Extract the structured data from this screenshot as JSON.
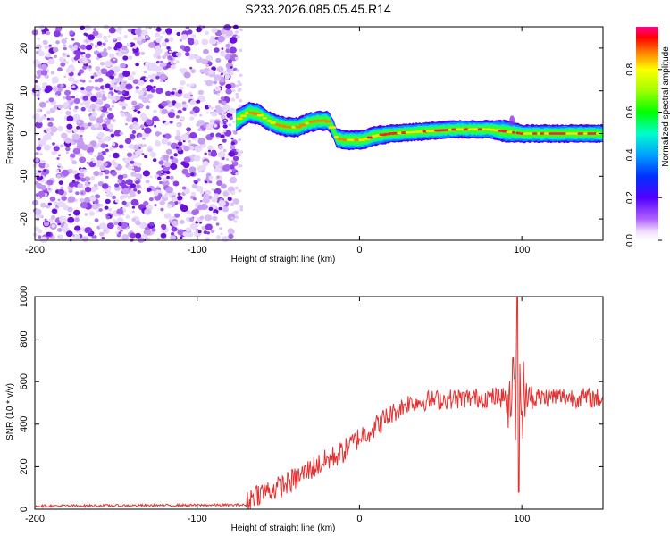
{
  "title": "S233.2026.085.05.45.R14",
  "colors": {
    "snr_line": "#e53030",
    "scatter": "#8a2be2",
    "background": "#ffffff"
  },
  "chart_data": [
    {
      "type": "heatmap",
      "name": "spectrogram",
      "xlabel": "Height of straight line (km)",
      "ylabel": "Frequency (Hz)",
      "xlim": [
        -200,
        150
      ],
      "ylim": [
        -25,
        25
      ],
      "xticks": [
        "-200",
        "-100",
        "0",
        "100"
      ],
      "yticks": [
        "20",
        "10",
        "0",
        "-10",
        "-20"
      ],
      "noise_region_x": [
        -200,
        -76
      ],
      "ridge": {
        "x": [
          -76,
          -72,
          -68,
          -62,
          -56,
          -50,
          -44,
          -38,
          -32,
          -26,
          -20,
          -18,
          -14,
          -10,
          -6,
          -2,
          2,
          6,
          10,
          20,
          40,
          60,
          80,
          90,
          100,
          120,
          150
        ],
        "freq": [
          3,
          4,
          5,
          4.5,
          3,
          2,
          1.5,
          1.5,
          2.5,
          3,
          3,
          2.5,
          -1,
          -1.5,
          -1.5,
          -1.5,
          -1.5,
          -1,
          -0.5,
          0,
          0.5,
          1,
          1,
          0.5,
          0,
          0,
          0
        ],
        "width": [
          1.4,
          1.3,
          1.3,
          1.3,
          1.2,
          1.2,
          1.2,
          1.2,
          1.2,
          1.2,
          1.2,
          1.2,
          1.2,
          1.2,
          1.2,
          1.2,
          1.2,
          1.2,
          1.2,
          1.1,
          1.1,
          1.1,
          1.1,
          1.4,
          1.1,
          1.1,
          1.1
        ]
      },
      "colorbar": {
        "label": "Normalized spectral amplitude",
        "ticks": [
          "0.0",
          "0.2",
          "0.4",
          "0.6",
          "0.8"
        ],
        "range": [
          0,
          1
        ]
      }
    },
    {
      "type": "line",
      "name": "snr",
      "xlabel": "Height of straight line (km)",
      "ylabel": "SNR (10 * v/v)",
      "xlim": [
        -200,
        150
      ],
      "ylim": [
        0,
        1000
      ],
      "xticks": [
        "-200",
        "-100",
        "0",
        "100"
      ],
      "yticks": [
        "0",
        "200",
        "400",
        "600",
        "800",
        "1000"
      ],
      "trend": {
        "x": [
          -200,
          -70,
          -65,
          -50,
          -40,
          -30,
          -20,
          -10,
          0,
          10,
          20,
          30,
          40,
          60,
          80,
          90,
          100,
          120,
          150
        ],
        "y": [
          15,
          20,
          70,
          100,
          140,
          190,
          230,
          270,
          340,
          390,
          450,
          500,
          510,
          520,
          525,
          530,
          520,
          530,
          520
        ]
      },
      "burst": {
        "x": 97,
        "peak": 1000,
        "min": 80
      }
    }
  ]
}
